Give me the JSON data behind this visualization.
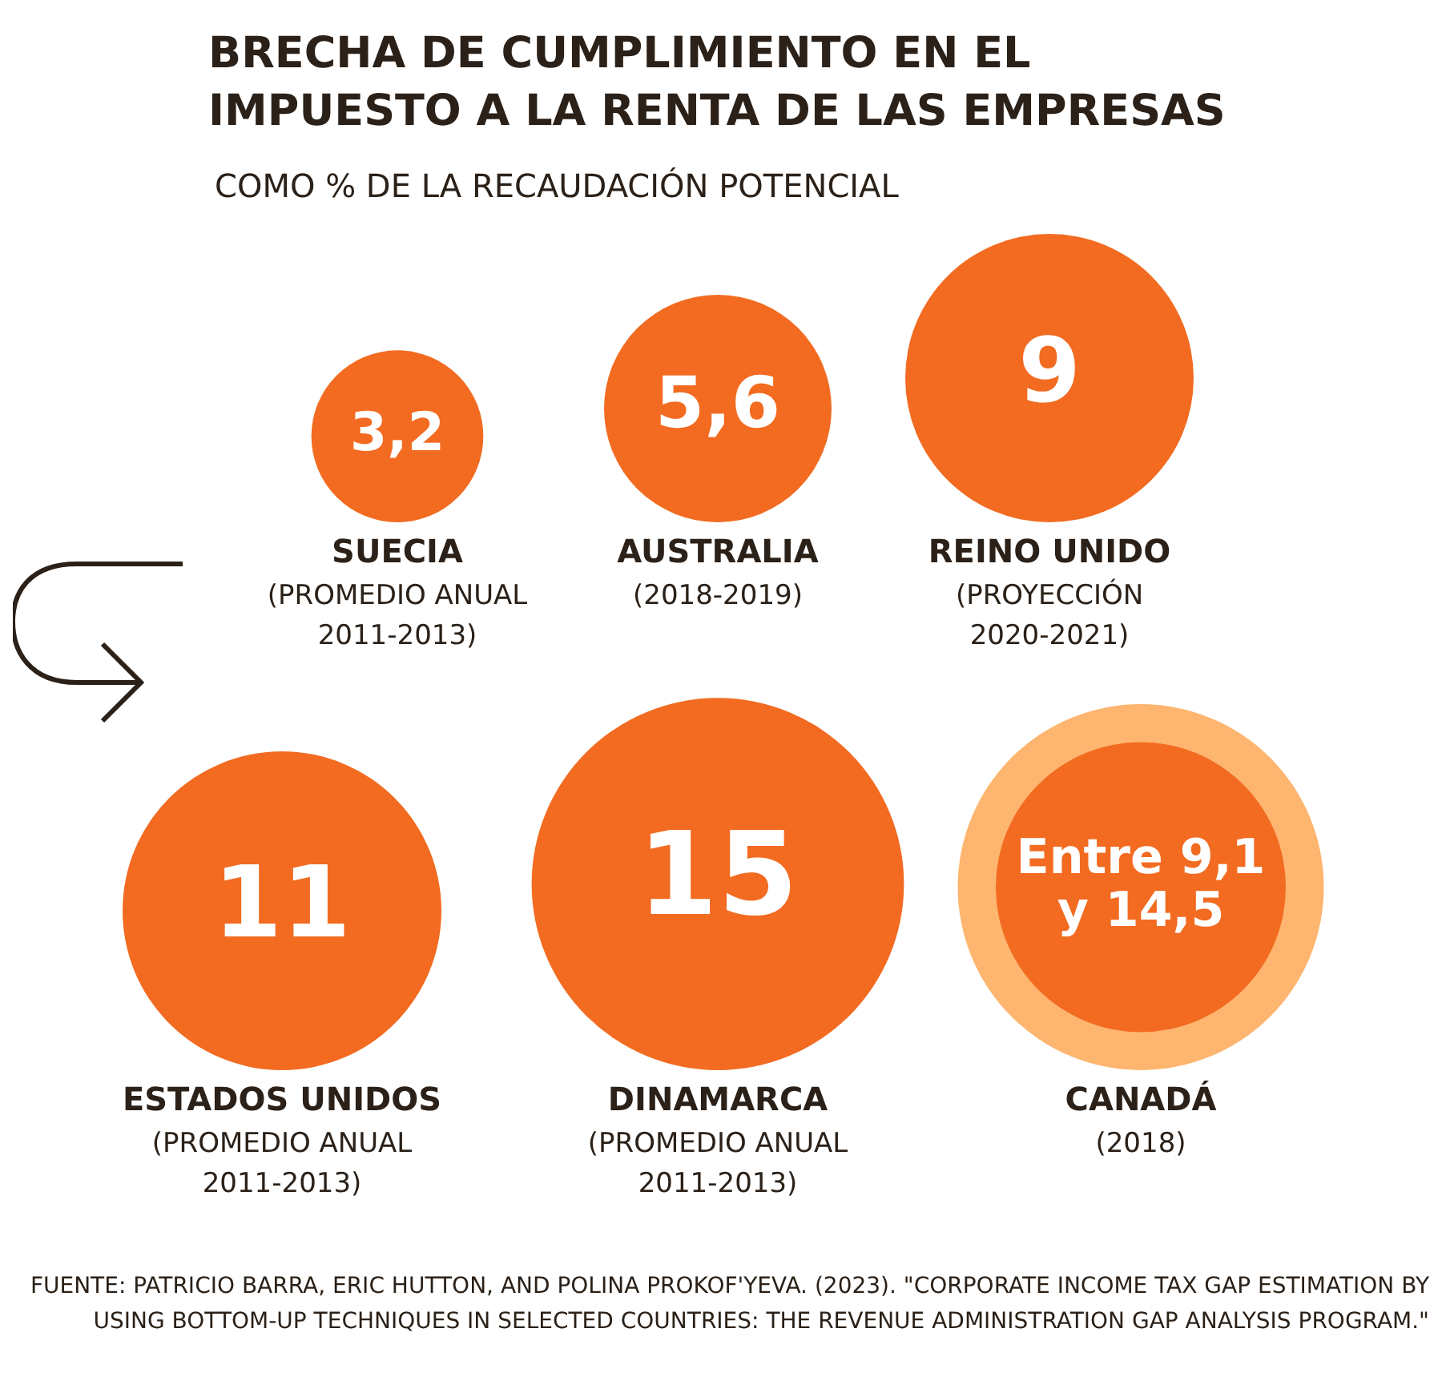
{
  "chart_data": {
    "type": "other",
    "title": "BRECHA DE CUMPLIMIENTO EN EL IMPUESTO A LA RENTA DE LAS EMPRESAS",
    "subtitle": "COMO % DE LA RECAUDACIÓN POTENCIAL",
    "categories": [
      "SUECIA (PROMEDIO ANUAL 2011-2013)",
      "AUSTRALIA (2018-2019)",
      "REINO UNIDO (PROYECCIÓN 2020-2021)",
      "ESTADOS UNIDOS (PROMEDIO ANUAL 2011-2013)",
      "DINAMARCA (PROMEDIO ANUAL 2011-2013)",
      "CANADÁ (2018)"
    ],
    "series": [
      {
        "color": "#f26b21",
        "values": [
          3.2,
          5.6,
          9,
          11,
          15,
          9.1
        ],
        "value_labels": [
          "3,2",
          "5,6",
          "9",
          "11",
          "15",
          "Entre 9,1"
        ]
      },
      {
        "color": "#fdb56f",
        "values": [
          null,
          null,
          null,
          null,
          null,
          14.5
        ],
        "value_labels": [
          null,
          null,
          null,
          null,
          null,
          "y 14,5"
        ]
      }
    ],
    "annotations": [
      "FUENTE: PATRICIO BARRA, ERIC HUTTON, AND POLINA PROKOF'YEVA. (2023). \"CORPORATE INCOME TAX GAP ESTIMATION BY USING BOTTOM-UP TECHNIQUES IN SELECTED COUNTRIES: THE REVENUE ADMINISTRATION GAP ANALYSIS PROGRAM.\""
    ]
  }
}
